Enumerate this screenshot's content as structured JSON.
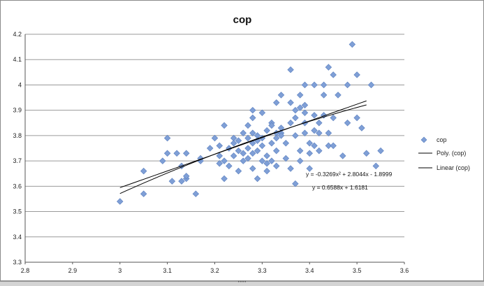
{
  "chart_data": {
    "type": "scatter",
    "title": "cop",
    "xlabel": "",
    "ylabel": "",
    "xlim": [
      2.8,
      3.6
    ],
    "ylim": [
      3.3,
      4.2
    ],
    "x_ticks": [
      "2.8",
      "2.9",
      "3",
      "3.1",
      "3.2",
      "3.3",
      "3.4",
      "3.5",
      "3.6"
    ],
    "y_ticks": [
      "3.3",
      "3.4",
      "3.5",
      "3.6",
      "3.7",
      "3.8",
      "3.9",
      "4",
      "4.1",
      "4.2"
    ],
    "grid": "horizontal",
    "legend_position": "right",
    "legend": [
      {
        "label": "cop",
        "kind": "marker"
      },
      {
        "label": "Poly. (cop)",
        "kind": "line"
      },
      {
        "label": "Linear (cop)",
        "kind": "line"
      }
    ],
    "marker_color": "#7f9fd6",
    "marker_edge": "#5a7fbf",
    "trend_color": "#000000",
    "series": [
      {
        "name": "cop",
        "points": [
          [
            3.0,
            3.54
          ],
          [
            3.05,
            3.57
          ],
          [
            3.05,
            3.66
          ],
          [
            3.09,
            3.7
          ],
          [
            3.1,
            3.73
          ],
          [
            3.1,
            3.79
          ],
          [
            3.11,
            3.62
          ],
          [
            3.12,
            3.73
          ],
          [
            3.13,
            3.68
          ],
          [
            3.13,
            3.62
          ],
          [
            3.14,
            3.73
          ],
          [
            3.14,
            3.63
          ],
          [
            3.14,
            3.64
          ],
          [
            3.16,
            3.57
          ],
          [
            3.17,
            3.7
          ],
          [
            3.17,
            3.71
          ],
          [
            3.19,
            3.75
          ],
          [
            3.2,
            3.79
          ],
          [
            3.21,
            3.72
          ],
          [
            3.21,
            3.69
          ],
          [
            3.21,
            3.76
          ],
          [
            3.22,
            3.7
          ],
          [
            3.22,
            3.84
          ],
          [
            3.22,
            3.63
          ],
          [
            3.23,
            3.68
          ],
          [
            3.23,
            3.75
          ],
          [
            3.24,
            3.79
          ],
          [
            3.24,
            3.77
          ],
          [
            3.24,
            3.72
          ],
          [
            3.25,
            3.74
          ],
          [
            3.25,
            3.78
          ],
          [
            3.25,
            3.66
          ],
          [
            3.26,
            3.81
          ],
          [
            3.26,
            3.73
          ],
          [
            3.26,
            3.7
          ],
          [
            3.27,
            3.79
          ],
          [
            3.27,
            3.75
          ],
          [
            3.27,
            3.71
          ],
          [
            3.27,
            3.84
          ],
          [
            3.28,
            3.9
          ],
          [
            3.28,
            3.87
          ],
          [
            3.28,
            3.81
          ],
          [
            3.28,
            3.77
          ],
          [
            3.28,
            3.73
          ],
          [
            3.28,
            3.67
          ],
          [
            3.29,
            3.78
          ],
          [
            3.29,
            3.8
          ],
          [
            3.29,
            3.74
          ],
          [
            3.29,
            3.63
          ],
          [
            3.3,
            3.89
          ],
          [
            3.3,
            3.7
          ],
          [
            3.3,
            3.76
          ],
          [
            3.3,
            3.79
          ],
          [
            3.31,
            3.82
          ],
          [
            3.31,
            3.69
          ],
          [
            3.31,
            3.66
          ],
          [
            3.31,
            3.72
          ],
          [
            3.32,
            3.77
          ],
          [
            3.32,
            3.85
          ],
          [
            3.32,
            3.84
          ],
          [
            3.32,
            3.7
          ],
          [
            3.33,
            3.81
          ],
          [
            3.33,
            3.79
          ],
          [
            3.33,
            3.93
          ],
          [
            3.33,
            3.74
          ],
          [
            3.33,
            3.68
          ],
          [
            3.34,
            3.81
          ],
          [
            3.34,
            3.96
          ],
          [
            3.34,
            3.8
          ],
          [
            3.34,
            3.83
          ],
          [
            3.35,
            3.77
          ],
          [
            3.35,
            3.71
          ],
          [
            3.36,
            3.85
          ],
          [
            3.36,
            3.93
          ],
          [
            3.36,
            4.06
          ],
          [
            3.36,
            3.67
          ],
          [
            3.37,
            3.87
          ],
          [
            3.37,
            3.61
          ],
          [
            3.37,
            3.8
          ],
          [
            3.37,
            3.9
          ],
          [
            3.38,
            3.91
          ],
          [
            3.38,
            3.96
          ],
          [
            3.38,
            3.74
          ],
          [
            3.38,
            3.7
          ],
          [
            3.39,
            3.81
          ],
          [
            3.39,
            3.85
          ],
          [
            3.39,
            3.89
          ],
          [
            3.39,
            3.92
          ],
          [
            3.39,
            4.0
          ],
          [
            3.4,
            3.77
          ],
          [
            3.4,
            3.73
          ],
          [
            3.4,
            3.67
          ],
          [
            3.41,
            3.82
          ],
          [
            3.41,
            4.0
          ],
          [
            3.41,
            3.88
          ],
          [
            3.41,
            3.76
          ],
          [
            3.42,
            3.74
          ],
          [
            3.42,
            3.81
          ],
          [
            3.42,
            3.85
          ],
          [
            3.43,
            4.0
          ],
          [
            3.43,
            3.96
          ],
          [
            3.43,
            3.88
          ],
          [
            3.44,
            3.81
          ],
          [
            3.44,
            3.76
          ],
          [
            3.44,
            4.07
          ],
          [
            3.45,
            4.04
          ],
          [
            3.45,
            3.87
          ],
          [
            3.45,
            3.76
          ],
          [
            3.46,
            3.96
          ],
          [
            3.47,
            3.72
          ],
          [
            3.48,
            4.0
          ],
          [
            3.48,
            3.85
          ],
          [
            3.49,
            4.16
          ],
          [
            3.5,
            3.87
          ],
          [
            3.5,
            4.04
          ],
          [
            3.51,
            3.83
          ],
          [
            3.53,
            4.0
          ],
          [
            3.54,
            3.68
          ],
          [
            3.55,
            3.74
          ],
          [
            3.52,
            3.73
          ]
        ]
      }
    ],
    "trendlines": [
      {
        "name": "Poly. (cop)",
        "type": "polynomial",
        "coefficients": [
          -0.3269,
          2.8044,
          -1.8999
        ],
        "x_range": [
          3.0,
          3.52
        ]
      },
      {
        "name": "Linear (cop)",
        "type": "linear",
        "coefficients": [
          0.6588,
          1.6181
        ],
        "x_range": [
          3.0,
          3.52
        ]
      }
    ],
    "annotations": [
      {
        "id": "poly_eq",
        "text": "y = -0.3269x² + 2.8044x - 1.8999"
      },
      {
        "id": "linear_eq",
        "text": "y = 0.6588x + 1.6181"
      }
    ]
  }
}
